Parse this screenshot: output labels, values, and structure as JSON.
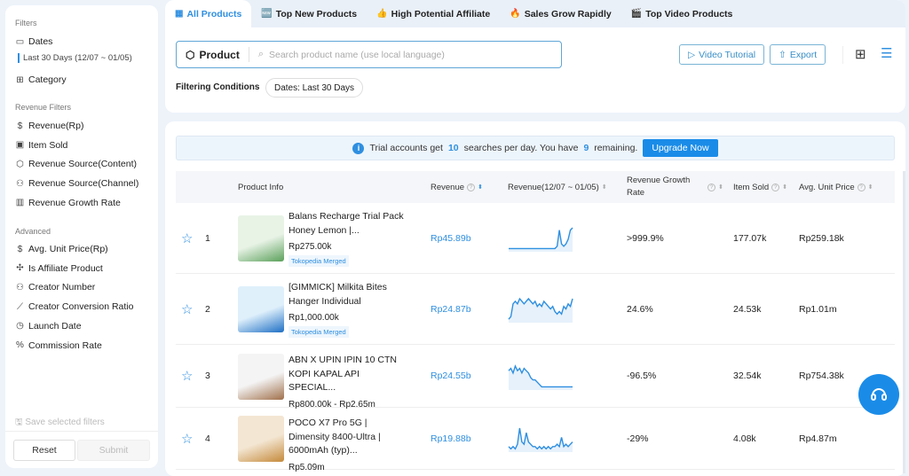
{
  "sidebar": {
    "filters_label": "Filters",
    "dates_label": "Dates",
    "dates_value": "Last 30 Days (12/07 ~ 01/05)",
    "category_label": "Category",
    "revenue_filters_label": "Revenue Filters",
    "revenue_items": [
      {
        "label": "Revenue(Rp)",
        "icon": "dollar-icon"
      },
      {
        "label": "Item Sold",
        "icon": "bag-icon"
      },
      {
        "label": "Revenue Source(Content)",
        "icon": "box-icon"
      },
      {
        "label": "Revenue Source(Channel)",
        "icon": "channel-icon"
      },
      {
        "label": "Revenue Growth Rate",
        "icon": "bar-chart-icon"
      }
    ],
    "advanced_label": "Advanced",
    "advanced_items": [
      {
        "label": "Avg. Unit Price(Rp)",
        "icon": "price-tag-icon"
      },
      {
        "label": "Is Affiliate Product",
        "icon": "puzzle-icon"
      },
      {
        "label": "Creator Number",
        "icon": "users-icon"
      },
      {
        "label": "Creator Conversion Ratio",
        "icon": "line-chart-icon"
      },
      {
        "label": "Launch Date",
        "icon": "clock-icon"
      },
      {
        "label": "Commission Rate",
        "icon": "percent-icon"
      }
    ],
    "save_label": "Save selected filters",
    "reset_label": "Reset",
    "submit_label": "Submit"
  },
  "tabs": [
    {
      "label": "All Products",
      "icon": "grid-icon",
      "active": true
    },
    {
      "label": "Top New Products",
      "icon": "new-badge-icon"
    },
    {
      "label": "High Potential Affiliate",
      "icon": "thumbs-up-icon"
    },
    {
      "label": "Sales Grow Rapidly",
      "icon": "fire-icon"
    },
    {
      "label": "Top Video Products",
      "icon": "clapper-icon"
    }
  ],
  "search": {
    "type_label": "Product",
    "placeholder": "Search product name (use local language)"
  },
  "toolbar": {
    "video_tutorial": "Video Tutorial",
    "export": "Export"
  },
  "filtering": {
    "label": "Filtering Conditions",
    "chip": "Dates: Last 30 Days"
  },
  "banner": {
    "t1": "Trial accounts get",
    "n1": "10",
    "t2": "searches per day. You have",
    "n2": "9",
    "t3": "remaining.",
    "button": "Upgrade Now"
  },
  "table": {
    "headers": [
      "Product Info",
      "Revenue",
      "Revenue(12/07 ~ 01/05)",
      "Revenue Growth Rate",
      "Item Sold",
      "Avg. Unit Price"
    ],
    "rows": [
      {
        "rank": "1",
        "name": "Balans Recharge Trial Pack Honey Lemon |...",
        "price": "Rp275.00k",
        "tag": "Tokopedia Merged",
        "revenue": "Rp45.89b",
        "growth": ">999.9%",
        "item_sold": "177.07k",
        "avg_price": "Rp259.18k",
        "trend": [
          1,
          1,
          1,
          1,
          1,
          1,
          1,
          1,
          1,
          1,
          1,
          1,
          1,
          1,
          1,
          1,
          1,
          1,
          1,
          1,
          1,
          1,
          2,
          9,
          3,
          2,
          3,
          5,
          9,
          10
        ],
        "img_colors": [
          "#e8f3e6",
          "#5aa05a"
        ]
      },
      {
        "rank": "2",
        "name": "[GIMMICK] Milkita Bites Hanger Individual",
        "price": "Rp1,000.00k",
        "tag": "Tokopedia Merged",
        "revenue": "Rp24.87b",
        "growth": "24.6%",
        "item_sold": "24.53k",
        "avg_price": "Rp1.01m",
        "trend": [
          1,
          2,
          7,
          8,
          7,
          9,
          8,
          7,
          8,
          9,
          8,
          7,
          8,
          6,
          7,
          6,
          8,
          7,
          6,
          5,
          6,
          4,
          3,
          4,
          3,
          6,
          5,
          7,
          6,
          9
        ],
        "img_colors": [
          "#dff0fb",
          "#1e6fc4"
        ]
      },
      {
        "rank": "3",
        "name": "ABN X UPIN IPIN 10 CTN KOPI KAPAL API SPECIAL...",
        "price": "Rp800.00k - Rp2.65m",
        "tag": "",
        "revenue": "Rp24.55b",
        "growth": "-96.5%",
        "item_sold": "32.54k",
        "avg_price": "Rp754.38k",
        "trend": [
          8,
          9,
          7,
          10,
          8,
          9,
          7,
          9,
          8,
          7,
          5,
          4,
          4,
          3,
          2,
          1,
          1,
          1,
          1,
          1,
          1,
          1,
          1,
          1,
          1,
          1,
          1,
          1,
          1,
          1
        ],
        "img_colors": [
          "#f4f4f4",
          "#a0704a"
        ]
      },
      {
        "rank": "4",
        "name": "POCO X7 Pro 5G | Dimensity 8400-Ultra | 6000mAh (typ)...",
        "price": "Rp5.09m",
        "tag": "",
        "revenue": "Rp19.88b",
        "growth": "-29%",
        "item_sold": "4.08k",
        "avg_price": "Rp4.87m",
        "trend": [
          2,
          1,
          2,
          1,
          3,
          10,
          4,
          3,
          8,
          4,
          3,
          2,
          2,
          1,
          2,
          1,
          2,
          1,
          2,
          1,
          2,
          2,
          3,
          2,
          6,
          2,
          3,
          2,
          3,
          4
        ],
        "img_colors": [
          "#f3e6d2",
          "#c58a3a"
        ]
      }
    ]
  },
  "colors": {
    "accent": "#1a8ce8",
    "link": "#2f8fe0"
  }
}
